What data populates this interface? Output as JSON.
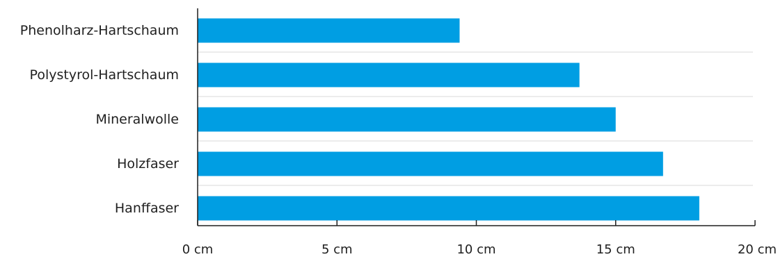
{
  "chart_data": {
    "type": "bar",
    "orientation": "horizontal",
    "categories": [
      "Phenolharz-Hartschaum",
      "Polystyrol-Hartschaum",
      "Mineralwolle",
      "Holzfaser",
      "Hanffaser"
    ],
    "values": [
      9.4,
      13.7,
      15.0,
      16.7,
      18.0
    ],
    "unit": "cm",
    "xlim": [
      0,
      20
    ],
    "x_ticks": [
      0,
      5,
      10,
      15,
      20
    ],
    "x_tick_labels": [
      "0 cm",
      "5 cm",
      "10 cm",
      "15 cm",
      "20 cm"
    ],
    "title": "",
    "xlabel": "",
    "ylabel": "",
    "grid": "horizontal separators between categories",
    "legend": "none",
    "colors": {
      "bar": "#009ee3",
      "axis": "#1f1f1f",
      "grid": "#d9d9d9"
    }
  }
}
